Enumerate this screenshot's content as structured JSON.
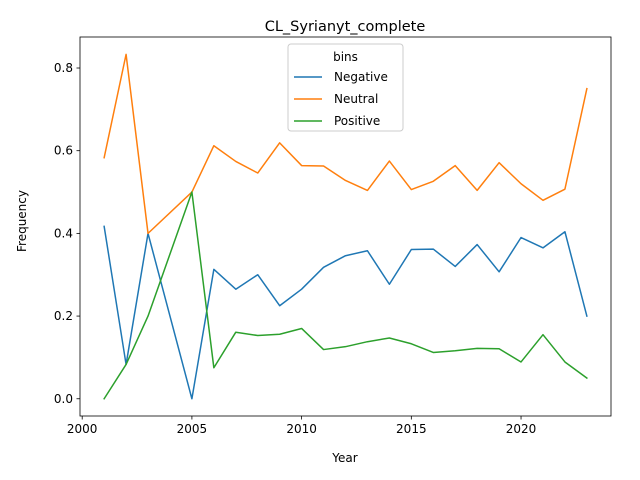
{
  "chart_data": {
    "type": "line",
    "title": "CL_Syrianyt_complete",
    "xlabel": "Year",
    "ylabel": "Frequency",
    "xlim": [
      1999.9,
      2024.1
    ],
    "ylim": [
      -0.0417,
      0.875
    ],
    "x_ticks": [
      2000,
      2005,
      2010,
      2015,
      2020
    ],
    "y_ticks": [
      0.0,
      0.2,
      0.4,
      0.6,
      0.8
    ],
    "x_tick_labels": [
      "2000",
      "2005",
      "2010",
      "2015",
      "2020"
    ],
    "y_tick_labels": [
      "0.0",
      "0.2",
      "0.4",
      "0.6",
      "0.8"
    ],
    "legend": {
      "title": "bins",
      "placement": "top-center"
    },
    "grid": false,
    "x": [
      2001,
      2002,
      2003,
      2005,
      2006,
      2007,
      2008,
      2009,
      2010,
      2011,
      2012,
      2013,
      2014,
      2015,
      2016,
      2017,
      2018,
      2019,
      2020,
      2021,
      2022,
      2023
    ],
    "series": [
      {
        "name": "Negative",
        "color": "#1f77b4",
        "values": [
          0.417,
          0.083,
          0.4,
          0.0,
          0.313,
          0.265,
          0.3,
          0.225,
          0.265,
          0.318,
          0.346,
          0.358,
          0.277,
          0.361,
          0.362,
          0.32,
          0.373,
          0.307,
          0.39,
          0.365,
          0.404,
          0.2
        ]
      },
      {
        "name": "Neutral",
        "color": "#ff7f0e",
        "values": [
          0.583,
          0.833,
          0.4,
          0.5,
          0.612,
          0.574,
          0.546,
          0.619,
          0.564,
          0.563,
          0.528,
          0.504,
          0.575,
          0.506,
          0.526,
          0.564,
          0.504,
          0.571,
          0.52,
          0.48,
          0.507,
          0.75
        ]
      },
      {
        "name": "Positive",
        "color": "#2ca02c",
        "values": [
          0.0,
          0.083,
          0.2,
          0.5,
          0.075,
          0.161,
          0.153,
          0.156,
          0.17,
          0.119,
          0.126,
          0.138,
          0.147,
          0.133,
          0.112,
          0.116,
          0.122,
          0.121,
          0.089,
          0.155,
          0.089,
          0.05
        ]
      }
    ]
  }
}
